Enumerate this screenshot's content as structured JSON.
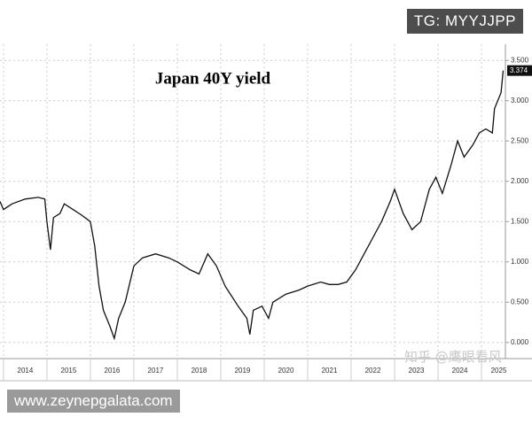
{
  "chart_data": {
    "type": "line",
    "title": "Japan 40Y yield",
    "x": [
      2013.92,
      2014.0,
      2014.2,
      2014.5,
      2014.8,
      2014.95,
      2015.0,
      2015.08,
      2015.15,
      2015.3,
      2015.4,
      2015.6,
      2015.8,
      2016.0,
      2016.1,
      2016.2,
      2016.3,
      2016.45,
      2016.55,
      2016.65,
      2016.8,
      2017.0,
      2017.2,
      2017.5,
      2017.8,
      2018.0,
      2018.3,
      2018.5,
      2018.7,
      2018.9,
      2019.1,
      2019.4,
      2019.6,
      2019.67,
      2019.75,
      2019.95,
      2020.1,
      2020.2,
      2020.5,
      2020.8,
      2021.0,
      2021.3,
      2021.5,
      2021.7,
      2021.9,
      2022.1,
      2022.3,
      2022.5,
      2022.7,
      2022.9,
      2023.0,
      2023.2,
      2023.4,
      2023.6,
      2023.8,
      2023.95,
      2024.1,
      2024.3,
      2024.45,
      2024.6,
      2024.8,
      2024.95,
      2025.1,
      2025.25,
      2025.3,
      2025.45,
      2025.5
    ],
    "values": [
      1.75,
      1.65,
      1.72,
      1.78,
      1.8,
      1.78,
      1.5,
      1.15,
      1.55,
      1.6,
      1.72,
      1.65,
      1.58,
      1.5,
      1.2,
      0.7,
      0.4,
      0.2,
      0.05,
      0.3,
      0.5,
      0.95,
      1.05,
      1.1,
      1.05,
      1.0,
      0.9,
      0.85,
      1.1,
      0.95,
      0.7,
      0.45,
      0.3,
      0.1,
      0.4,
      0.45,
      0.3,
      0.5,
      0.6,
      0.65,
      0.7,
      0.75,
      0.72,
      0.72,
      0.75,
      0.9,
      1.1,
      1.3,
      1.5,
      1.75,
      1.9,
      1.6,
      1.4,
      1.5,
      1.9,
      2.05,
      1.85,
      2.2,
      2.5,
      2.3,
      2.45,
      2.6,
      2.65,
      2.6,
      2.9,
      3.1,
      3.374
    ],
    "color": "#111111",
    "xlim": [
      2013.92,
      2025.55
    ],
    "xticks": [
      2014,
      2015,
      2016,
      2017,
      2018,
      2019,
      2020,
      2021,
      2022,
      2023,
      2024,
      2025
    ],
    "ylim": [
      -0.2,
      3.7
    ],
    "yticks": [
      {
        "value": 0,
        "label": "0.000"
      },
      {
        "value": 0.5,
        "label": "0.500"
      },
      {
        "value": 1,
        "label": "1.000"
      },
      {
        "value": 1.5,
        "label": "1.500"
      },
      {
        "value": 2,
        "label": "2.000"
      },
      {
        "value": 2.5,
        "label": "2.500"
      },
      {
        "value": 3,
        "label": "3.000"
      },
      {
        "value": 3.5,
        "label": "3.500"
      }
    ],
    "grid": true
  },
  "watermarks": [
    "TG: MYYJJPP",
    "www.zeynepgalata.com",
    "知乎 @鹰眼看风"
  ]
}
